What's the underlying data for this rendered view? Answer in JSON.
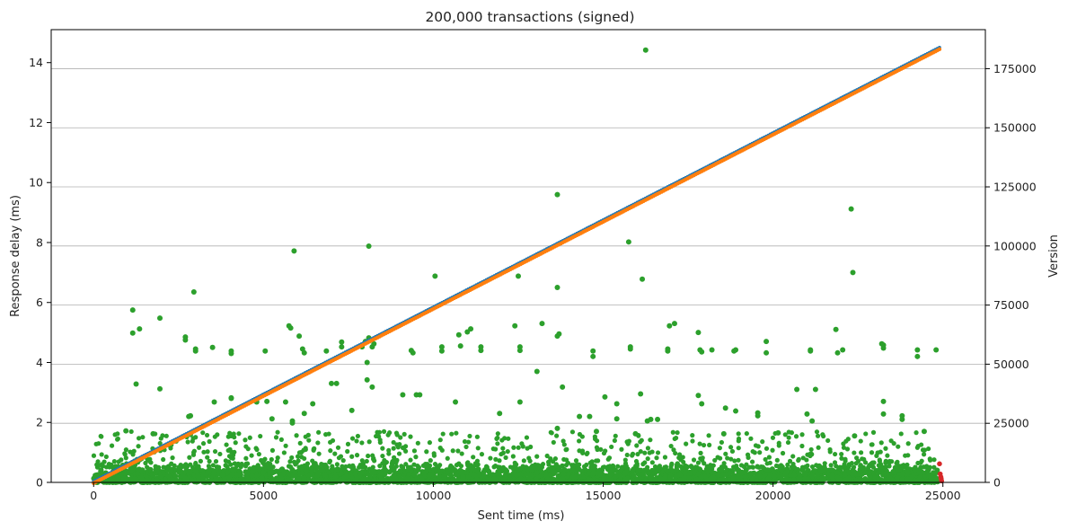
{
  "chart_data": {
    "type": "scatter",
    "title": "200,000 transactions (signed)",
    "xlabel": "Sent time (ms)",
    "ylabel": "Response delay (ms)",
    "y2label": "Version",
    "xlim": [
      -1250,
      26250
    ],
    "ylim": [
      0,
      15.1
    ],
    "y2lim": [
      0,
      191500
    ],
    "xticks": [
      0,
      5000,
      10000,
      15000,
      20000,
      25000
    ],
    "yticks": [
      0,
      2,
      4,
      6,
      8,
      10,
      12,
      14
    ],
    "y2ticks": [
      0,
      25000,
      50000,
      75000,
      100000,
      125000,
      150000,
      175000
    ],
    "grid": "horizontal (right axis)",
    "colors": {
      "response_delay": "#2ca02c",
      "version_sent": "#1f77b4",
      "version_received": "#ff7f0e",
      "failed": "#d62728"
    },
    "version_line": {
      "x_range": [
        0,
        24900
      ],
      "version_range": [
        0,
        183500
      ]
    },
    "outliers": [
      [
        16250,
        14.42
      ],
      [
        13650,
        9.6
      ],
      [
        22300,
        9.12
      ],
      [
        15750,
        8.02
      ],
      [
        5900,
        7.72
      ],
      [
        8100,
        7.88
      ],
      [
        22350,
        7.0
      ],
      [
        10050,
        6.88
      ],
      [
        2950,
        6.35
      ],
      [
        13650,
        6.5
      ],
      [
        16150,
        6.78
      ],
      [
        12500,
        6.88
      ],
      [
        1150,
        5.75
      ],
      [
        1150,
        4.98
      ],
      [
        1350,
        5.12
      ],
      [
        1950,
        5.48
      ],
      [
        5750,
        5.22
      ],
      [
        5800,
        5.15
      ],
      [
        6050,
        4.88
      ],
      [
        6150,
        4.45
      ],
      [
        6200,
        4.32
      ],
      [
        6850,
        4.38
      ],
      [
        7300,
        4.52
      ],
      [
        7300,
        4.68
      ],
      [
        3500,
        4.5
      ],
      [
        4050,
        4.38
      ],
      [
        4050,
        4.3
      ],
      [
        5050,
        4.38
      ],
      [
        2700,
        4.85
      ],
      [
        2700,
        4.75
      ],
      [
        3000,
        4.45
      ],
      [
        3000,
        4.38
      ],
      [
        7900,
        4.52
      ],
      [
        8000,
        4.7
      ],
      [
        8100,
        4.82
      ],
      [
        8250,
        4.62
      ],
      [
        8200,
        4.52
      ],
      [
        9350,
        4.4
      ],
      [
        9400,
        4.32
      ],
      [
        10250,
        4.52
      ],
      [
        10250,
        4.38
      ],
      [
        10750,
        4.92
      ],
      [
        10800,
        4.55
      ],
      [
        11000,
        5.02
      ],
      [
        11100,
        5.12
      ],
      [
        11400,
        4.52
      ],
      [
        11400,
        4.4
      ],
      [
        12400,
        5.22
      ],
      [
        12550,
        4.52
      ],
      [
        12550,
        4.4
      ],
      [
        13200,
        5.3
      ],
      [
        13650,
        4.88
      ],
      [
        13700,
        4.95
      ],
      [
        14700,
        4.38
      ],
      [
        14700,
        4.2
      ],
      [
        15800,
        4.45
      ],
      [
        15800,
        4.52
      ],
      [
        16900,
        4.38
      ],
      [
        16900,
        4.45
      ],
      [
        16950,
        5.22
      ],
      [
        17100,
        5.3
      ],
      [
        17800,
        5.0
      ],
      [
        17850,
        4.42
      ],
      [
        17900,
        4.35
      ],
      [
        18200,
        4.42
      ],
      [
        18850,
        4.38
      ],
      [
        18900,
        4.42
      ],
      [
        19800,
        4.32
      ],
      [
        19800,
        4.7
      ],
      [
        21100,
        4.42
      ],
      [
        21100,
        4.38
      ],
      [
        21850,
        5.1
      ],
      [
        21900,
        4.32
      ],
      [
        22050,
        4.42
      ],
      [
        23200,
        4.62
      ],
      [
        23250,
        4.58
      ],
      [
        23250,
        4.48
      ],
      [
        24250,
        4.42
      ],
      [
        24250,
        4.2
      ],
      [
        24800,
        4.42
      ],
      [
        1250,
        3.28
      ],
      [
        1950,
        3.12
      ],
      [
        8050,
        3.42
      ],
      [
        8200,
        3.18
      ],
      [
        8050,
        4.0
      ],
      [
        7000,
        3.3
      ],
      [
        7150,
        3.3
      ],
      [
        9100,
        2.92
      ],
      [
        9500,
        2.92
      ],
      [
        9600,
        2.92
      ],
      [
        13050,
        3.7
      ],
      [
        13800,
        3.18
      ],
      [
        15050,
        2.85
      ],
      [
        16100,
        2.95
      ],
      [
        17800,
        2.9
      ],
      [
        17900,
        2.62
      ],
      [
        19550,
        2.32
      ],
      [
        20700,
        3.1
      ],
      [
        21250,
        3.1
      ],
      [
        23250,
        2.7
      ],
      [
        23250,
        2.28
      ],
      [
        23800,
        2.22
      ],
      [
        23800,
        2.1
      ],
      [
        4050,
        2.82
      ],
      [
        3550,
        2.68
      ],
      [
        4800,
        2.68
      ],
      [
        5100,
        2.7
      ],
      [
        5650,
        2.68
      ],
      [
        5850,
        2.05
      ],
      [
        5850,
        1.98
      ],
      [
        6200,
        2.3
      ],
      [
        6450,
        2.62
      ],
      [
        7600,
        2.4
      ],
      [
        10650,
        2.68
      ],
      [
        11950,
        2.3
      ],
      [
        12550,
        2.68
      ],
      [
        14300,
        2.2
      ],
      [
        14600,
        2.2
      ],
      [
        15400,
        2.12
      ],
      [
        15400,
        2.62
      ],
      [
        16300,
        2.05
      ],
      [
        16400,
        2.1
      ],
      [
        16600,
        2.1
      ],
      [
        18600,
        2.48
      ],
      [
        18900,
        2.38
      ],
      [
        19550,
        2.22
      ],
      [
        21000,
        2.28
      ],
      [
        21150,
        2.05
      ],
      [
        2800,
        2.2
      ],
      [
        2850,
        2.22
      ],
      [
        4050,
        2.8
      ],
      [
        5250,
        2.12
      ],
      [
        13650,
        1.8
      ],
      [
        14800,
        1.7
      ],
      [
        15950,
        1.62
      ],
      [
        18550,
        1.62
      ],
      [
        20150,
        1.65
      ],
      [
        22400,
        1.55
      ],
      [
        24450,
        1.7
      ],
      [
        950,
        1.72
      ],
      [
        1750,
        1.62
      ]
    ],
    "dense_band": {
      "x_range": [
        0,
        24850
      ],
      "bulk_max_delay": 0.45,
      "upper_band_delay": [
        0.5,
        1.7
      ]
    },
    "failed_points": [
      [
        24900,
        0.62
      ],
      [
        24920,
        0.28
      ],
      [
        24940,
        0.18
      ],
      [
        24950,
        0.12
      ],
      [
        24960,
        0.05
      ]
    ]
  }
}
